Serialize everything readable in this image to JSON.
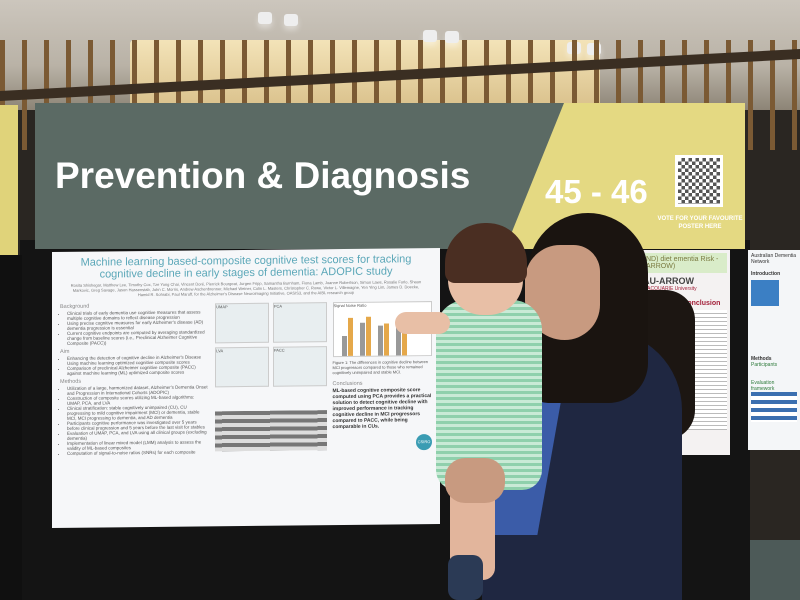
{
  "banner": {
    "title": "Prevention & Diagnosis",
    "poster_numbers": "45 - 46",
    "qr_caption": "VOTE FOR YOUR FAVOURITE POSTER HERE",
    "colors": {
      "left": "#5b6a64",
      "right": "#e4d982"
    }
  },
  "poster": {
    "title": "Machine learning based-composite cognitive test scores for tracking cognitive decline in early stages of dementia: ADOPIC study",
    "authors": "Rosita Shishegar, Matthew Lee, Timothy Cox, Tze Yong Chai, Vincent Doré, Pierrick Bourgeat, Jurgen Fripp, Samantha Burnham, Fiona Lamb, Joanne Robertson, Simon Laws, Rosalie Furlo, Shaun Markovic, Greg Savage, Jason Hassenstab, John C. Morris, Andrew Aschenbrenner, Michael Weiner, Colin L. Masters, Christopher C. Rowe, Victor L. Villemagne, Yen Ying Lim, James D. Doecke, Hamid R. Sohrabi, Paul Maruff, for the Alzheimer's Disease Neuroimaging Initiative, OASIS3, and the AIBL research group",
    "background": {
      "heading": "Background",
      "items": [
        "Clinical trials of early dementia use cognitive measures that assess multiple cognitive domains to reflect disease progression",
        "Using precise cognitive measures for early Alzheimer's disease (AD) dementia progression is essential",
        "Current cognitive endpoints are computed by averaging standardized change from baseline scores (i.e., Preclinical Alzheimer Cognitive Composite (PACC))"
      ]
    },
    "aim": {
      "heading": "Aim",
      "items": [
        "Enhancing the detection of cognitive decline in Alzheimer's Disease Using machine learning optimized cognitive composite scores",
        "Comparison of preclinical Alzheimer cognitive composite (PACC) against machine learning (ML) optimized composite scores"
      ]
    },
    "methods": {
      "heading": "Methods",
      "items": [
        "Utilization of a large, harmonized dataset, Alzheimer's Dementia Onset and Progression in International Cohorts (ADOPIC)",
        "Construction of composite scores utilizing ML-based algorithms: UMAP, PCA, and LVA",
        "Clinical stratification: stable cognitively unimpaired (CU), CU progressing to mild cognitive impairment (MCI) or dementia, stable MCI, MCI progressing to dementia, and AD dementia",
        "Participants cognitive performance was investigated over 5 years before clinical progression and 5 years before the last visit for stables",
        "Evaluation of UMAP, PCA, and LVA using all clinical groups (excluding dementia)",
        "Implementation of linear mixed model (LMM) analysis to assess the validity of ML-based composites",
        "Computation of signal-to-noise ratios (SNRs) for each composite"
      ]
    },
    "chart_labels": [
      "UMAP",
      "PCA",
      "LVA",
      "PACC",
      "Signal Noise Ratio"
    ],
    "figure1": "Figure 1: The differences in cognitive decline between MCI progressors compared to those who remained cognitively unimpaired and stable MCI.",
    "conclusions": {
      "heading": "Conclusions",
      "text": "ML-based cognitive composite score computed using PCA provides a practical solution to detect cognitive decline with improved performance in tracking cognitive decline in MCI progressors compared to PACC, while being comparable in CUs."
    },
    "logo": "CSIRO"
  },
  "poster2": {
    "title_fragment": "ND) diet ementia Risk -ARROW)",
    "logo": "AU-ARROW",
    "university": "MACQUARIE University",
    "heading": "Discussion/Conclusion"
  },
  "poster3": {
    "org": "Australian Dementia Network",
    "heading": "Introduction",
    "methods": "Methods",
    "participants": "Participants",
    "evaluation": "Evaluation framework"
  }
}
